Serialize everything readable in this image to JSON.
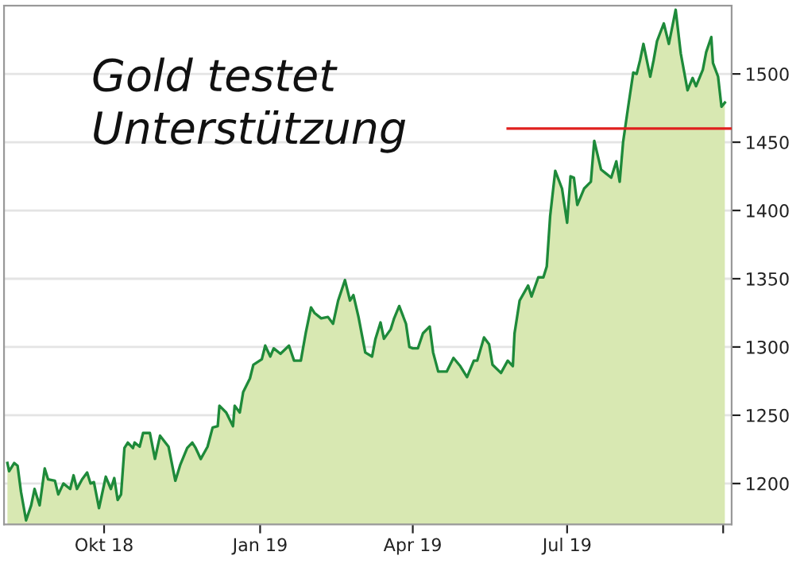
{
  "chart_data": {
    "type": "area",
    "title": "Gold testet\nUnterstützung",
    "xlim": [
      "2018-08-03",
      "2019-10-06"
    ],
    "ylim": [
      1170,
      1550
    ],
    "xticks": [
      {
        "value": "2018-10-01",
        "label": "Okt 18"
      },
      {
        "value": "2019-01-01",
        "label": "Jan 19"
      },
      {
        "value": "2019-04-01",
        "label": "Apr 19"
      },
      {
        "value": "2019-07-01",
        "label": "Jul 19"
      },
      {
        "value": "2019-10-01",
        "label": null
      }
    ],
    "yticks": [
      1200,
      1250,
      1300,
      1350,
      1400,
      1450,
      1500
    ],
    "grid": "y",
    "series": [
      {
        "color": "#1e8a3a",
        "x": [
          "2018-08-05",
          "2018-08-06",
          "2018-08-09",
          "2018-08-11",
          "2018-08-13",
          "2018-08-16",
          "2018-08-19",
          "2018-08-21",
          "2018-08-24",
          "2018-08-27",
          "2018-08-29",
          "2018-09-02",
          "2018-09-04",
          "2018-09-07",
          "2018-09-11",
          "2018-09-13",
          "2018-09-15",
          "2018-09-18",
          "2018-09-21",
          "2018-09-23",
          "2018-09-25",
          "2018-09-28",
          "2018-10-02",
          "2018-10-05",
          "2018-10-07",
          "2018-10-09",
          "2018-10-11",
          "2018-10-13",
          "2018-10-15",
          "2018-10-18",
          "2018-10-19",
          "2018-10-22",
          "2018-10-24",
          "2018-10-28",
          "2018-10-31",
          "2018-11-03",
          "2018-11-08",
          "2018-11-12",
          "2018-11-15",
          "2018-11-19",
          "2018-11-22",
          "2018-11-24",
          "2018-11-27",
          "2018-12-01",
          "2018-12-04",
          "2018-12-07",
          "2018-12-08",
          "2018-12-12",
          "2018-12-16",
          "2018-12-17",
          "2018-12-20",
          "2018-12-22",
          "2018-12-26",
          "2018-12-28",
          "2019-01-02",
          "2019-01-04",
          "2019-01-07",
          "2019-01-09",
          "2019-01-13",
          "2019-01-18",
          "2019-01-21",
          "2019-01-25",
          "2019-01-28",
          "2019-01-31",
          "2019-02-02",
          "2019-02-06",
          "2019-02-10",
          "2019-02-13",
          "2019-02-16",
          "2019-02-20",
          "2019-02-23",
          "2019-02-25",
          "2019-02-28",
          "2019-03-04",
          "2019-03-08",
          "2019-03-10",
          "2019-03-13",
          "2019-03-15",
          "2019-03-19",
          "2019-03-21",
          "2019-03-24",
          "2019-03-28",
          "2019-03-30",
          "2019-04-01",
          "2019-04-04",
          "2019-04-07",
          "2019-04-11",
          "2019-04-13",
          "2019-04-16",
          "2019-04-21",
          "2019-04-25",
          "2019-04-29",
          "2019-05-03",
          "2019-05-07",
          "2019-05-09",
          "2019-05-13",
          "2019-05-16",
          "2019-05-18",
          "2019-05-23",
          "2019-05-27",
          "2019-05-30",
          "2019-05-31",
          "2019-06-03",
          "2019-06-08",
          "2019-06-10",
          "2019-06-14",
          "2019-06-17",
          "2019-06-19",
          "2019-06-21",
          "2019-06-24",
          "2019-06-28",
          "2019-07-01",
          "2019-07-03",
          "2019-07-05",
          "2019-07-07",
          "2019-07-11",
          "2019-07-15",
          "2019-07-17",
          "2019-07-21",
          "2019-07-24",
          "2019-07-27",
          "2019-07-30",
          "2019-08-01",
          "2019-08-03",
          "2019-08-06",
          "2019-08-09",
          "2019-08-11",
          "2019-08-13",
          "2019-08-15",
          "2019-08-19",
          "2019-08-21",
          "2019-08-23",
          "2019-08-27",
          "2019-08-30",
          "2019-09-03",
          "2019-09-06",
          "2019-09-10",
          "2019-09-13",
          "2019-09-15",
          "2019-09-19",
          "2019-09-21",
          "2019-09-24",
          "2019-09-25",
          "2019-09-28",
          "2019-09-30",
          "2019-10-02"
        ],
        "values": [
          1215,
          1209,
          1215,
          1213,
          1194,
          1173,
          1184,
          1196,
          1184,
          1211,
          1203,
          1202,
          1192,
          1200,
          1196,
          1206,
          1196,
          1203,
          1208,
          1200,
          1201,
          1182,
          1205,
          1196,
          1204,
          1188,
          1192,
          1226,
          1230,
          1226,
          1230,
          1227,
          1237,
          1237,
          1218,
          1235,
          1227,
          1202,
          1214,
          1226,
          1230,
          1226,
          1218,
          1227,
          1241,
          1242,
          1257,
          1252,
          1242,
          1257,
          1252,
          1267,
          1277,
          1287,
          1291,
          1301,
          1293,
          1299,
          1295,
          1301,
          1290,
          1290,
          1311,
          1329,
          1325,
          1321,
          1322,
          1317,
          1334,
          1349,
          1334,
          1338,
          1322,
          1296,
          1293,
          1306,
          1318,
          1306,
          1313,
          1321,
          1330,
          1317,
          1300,
          1299,
          1299,
          1310,
          1315,
          1296,
          1282,
          1282,
          1292,
          1286,
          1278,
          1290,
          1290,
          1307,
          1302,
          1287,
          1281,
          1290,
          1286,
          1310,
          1334,
          1345,
          1337,
          1351,
          1351,
          1359,
          1396,
          1429,
          1416,
          1391,
          1425,
          1424,
          1404,
          1416,
          1421,
          1451,
          1430,
          1427,
          1424,
          1436,
          1421,
          1450,
          1476,
          1501,
          1500,
          1510,
          1522,
          1498,
          1510,
          1524,
          1537,
          1522,
          1547,
          1515,
          1488,
          1497,
          1491,
          1503,
          1516,
          1527,
          1508,
          1498,
          1476,
          1479
        ]
      },
      {
        "type": "line",
        "color": "#e0201e",
        "x": [
          "2019-05-27",
          "2019-10-06"
        ],
        "values": [
          1460,
          1460
        ]
      }
    ]
  }
}
